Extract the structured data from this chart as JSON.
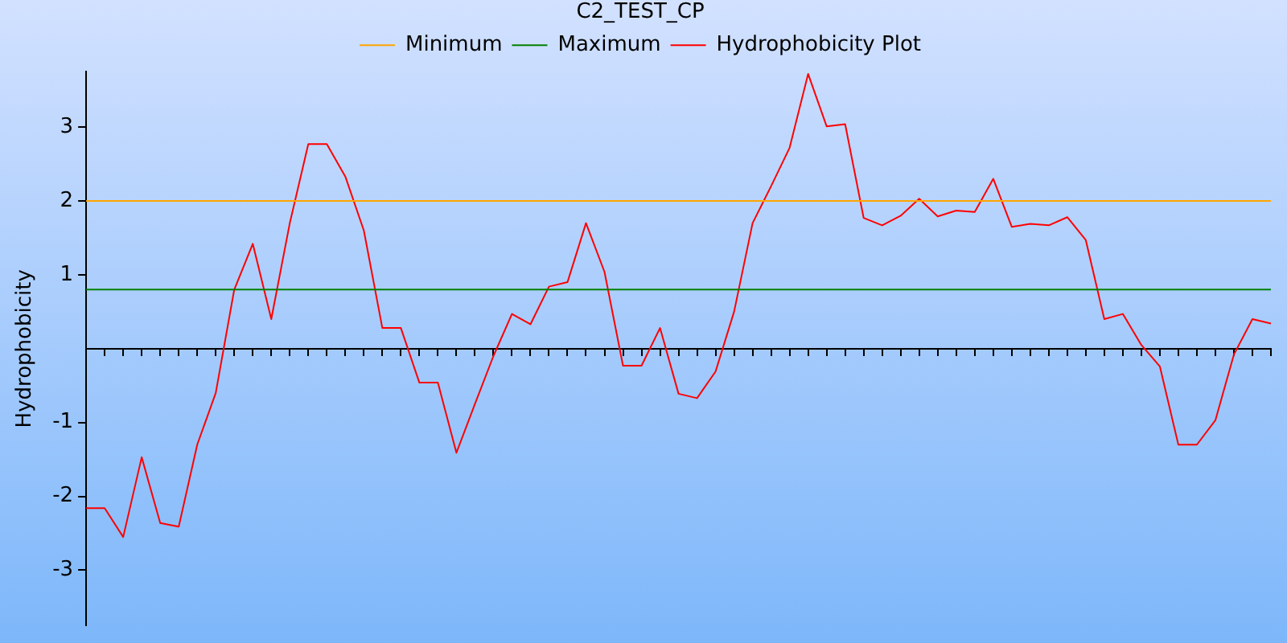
{
  "chart_data": {
    "type": "line",
    "title": "C2_TEST_CP",
    "ylabel": "Hydrophobicity",
    "categories": [
      null,
      null,
      null,
      null,
      null,
      null,
      null,
      null,
      null,
      null,
      null,
      null,
      null,
      null,
      null,
      null,
      null,
      null,
      null,
      null,
      null,
      null,
      null,
      null,
      null,
      null,
      null,
      null,
      null,
      null,
      null,
      null,
      null,
      null,
      null,
      null,
      null,
      null,
      null,
      null,
      null,
      null,
      null,
      null,
      null,
      null,
      null,
      null,
      null,
      null,
      null,
      null,
      null,
      null,
      null,
      null,
      null,
      null,
      null,
      null,
      null,
      null,
      null,
      null,
      null
    ],
    "series": [
      {
        "name": "Minimum",
        "color": "#ffa500",
        "values": [
          2,
          2,
          2,
          2,
          2,
          2,
          2,
          2,
          2,
          2,
          2,
          2,
          2,
          2,
          2,
          2,
          2,
          2,
          2,
          2,
          2,
          2,
          2,
          2,
          2,
          2,
          2,
          2,
          2,
          2,
          2,
          2,
          2,
          2,
          2,
          2,
          2,
          2,
          2,
          2,
          2,
          2,
          2,
          2,
          2,
          2,
          2,
          2,
          2,
          2,
          2,
          2,
          2,
          2,
          2,
          2,
          2,
          2,
          2,
          2,
          2,
          2,
          2,
          2,
          2
        ]
      },
      {
        "name": "Maximum",
        "color": "#008000",
        "values": [
          0.8,
          0.8,
          0.8,
          0.8,
          0.8,
          0.8,
          0.8,
          0.8,
          0.8,
          0.8,
          0.8,
          0.8,
          0.8,
          0.8,
          0.8,
          0.8,
          0.8,
          0.8,
          0.8,
          0.8,
          0.8,
          0.8,
          0.8,
          0.8,
          0.8,
          0.8,
          0.8,
          0.8,
          0.8,
          0.8,
          0.8,
          0.8,
          0.8,
          0.8,
          0.8,
          0.8,
          0.8,
          0.8,
          0.8,
          0.8,
          0.8,
          0.8,
          0.8,
          0.8,
          0.8,
          0.8,
          0.8,
          0.8,
          0.8,
          0.8,
          0.8,
          0.8,
          0.8,
          0.8,
          0.8,
          0.8,
          0.8,
          0.8,
          0.8,
          0.8,
          0.8,
          0.8,
          0.8,
          0.8,
          0.8
        ]
      },
      {
        "name": "Hydrophobicity Plot",
        "color": "#ff0000",
        "values": [
          -2.16,
          -2.16,
          -2.55,
          -1.47,
          -2.36,
          -2.41,
          -1.3,
          -0.6,
          0.8,
          1.42,
          0.4,
          1.7,
          2.77,
          2.77,
          2.33,
          1.6,
          0.28,
          0.28,
          -0.46,
          -0.46,
          -1.41,
          -0.75,
          -0.1,
          0.47,
          0.33,
          0.84,
          0.9,
          1.7,
          1.04,
          -0.23,
          -0.23,
          0.28,
          -0.61,
          -0.67,
          -0.31,
          0.5,
          1.7,
          2.2,
          2.72,
          3.72,
          3.01,
          3.04,
          1.77,
          1.67,
          1.8,
          2.03,
          1.79,
          1.87,
          1.85,
          2.3,
          1.65,
          1.69,
          1.67,
          1.78,
          1.47,
          0.4,
          0.47,
          0.05,
          -0.24,
          -1.3,
          -1.3,
          -0.97,
          -0.08,
          0.4,
          0.34
        ]
      }
    ],
    "ylim": [
      -3.75,
      3.75
    ],
    "yticks": [
      -3,
      -2,
      -1,
      1,
      2,
      3
    ],
    "grid": false,
    "legend": "top",
    "tick_labels": "y",
    "marker": "none",
    "line_style": "solid"
  }
}
